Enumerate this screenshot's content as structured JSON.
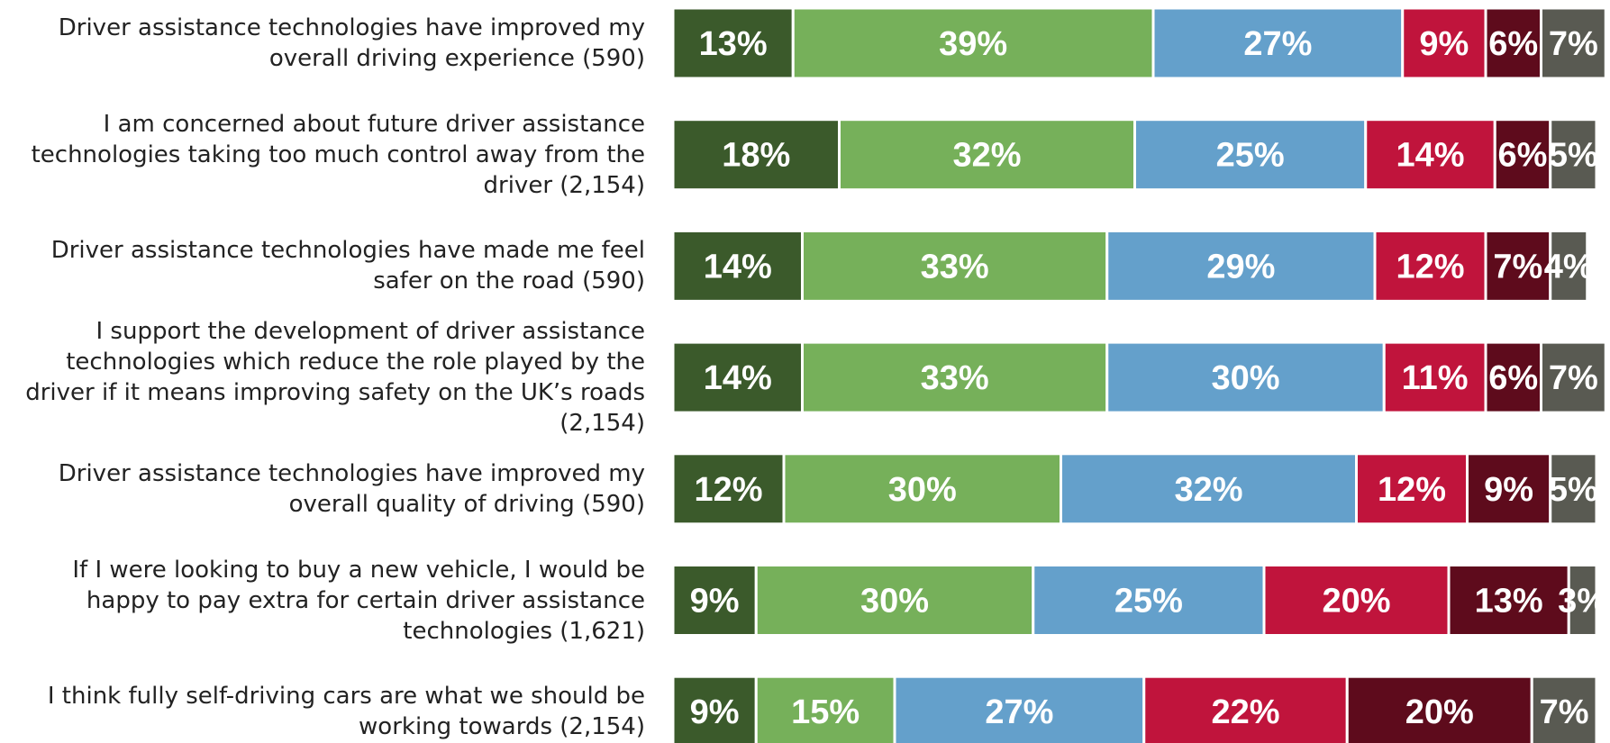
{
  "chart_data": {
    "type": "stacked_bar_horizontal",
    "categories": [
      "Driver assistance technologies have improved my overall driving experience (590)",
      "I am concerned about future driver assistance technologies taking too much control away from the driver (2,154)",
      "Driver assistance technologies have made me feel safer on the road (590)",
      "I support the development of driver assistance technologies which reduce the role played by the driver if it means improving safety on the UK’s roads (2,154)",
      "Driver assistance technologies have improved my overall quality of driving (590)",
      "If I were looking to buy a new vehicle, I would be happy to pay extra for certain driver assistance technologies (1,621)",
      "I think fully self-driving cars are what we should be working towards (2,154)"
    ],
    "series": [
      {
        "color": "#3b5a2b",
        "values": [
          13,
          18,
          14,
          14,
          12,
          9,
          9
        ],
        "value_labels": [
          "13%",
          "18%",
          "14%",
          "14%",
          "12%",
          "9%",
          "9%"
        ]
      },
      {
        "color": "#76b05a",
        "values": [
          39,
          32,
          33,
          33,
          30,
          30,
          15
        ],
        "value_labels": [
          "39%",
          "32%",
          "33%",
          "33%",
          "30%",
          "30%",
          "15%"
        ]
      },
      {
        "color": "#64a0cb",
        "values": [
          27,
          25,
          29,
          30,
          32,
          25,
          27
        ],
        "value_labels": [
          "27%",
          "25%",
          "29%",
          "30%",
          "32%",
          "25%",
          "27%"
        ]
      },
      {
        "color": "#c0143c",
        "values": [
          9,
          14,
          12,
          11,
          12,
          20,
          22
        ],
        "value_labels": [
          "9%",
          "14%",
          "12%",
          "11%",
          "12%",
          "20%",
          "22%"
        ]
      },
      {
        "color": "#5e0b1c",
        "values": [
          6,
          6,
          7,
          6,
          9,
          13,
          20
        ],
        "value_labels": [
          "6%",
          "6%",
          "7%",
          "6%",
          "9%",
          "13%",
          "20%"
        ]
      },
      {
        "color": "#595a52",
        "values": [
          7,
          5,
          4,
          7,
          5,
          3,
          7
        ],
        "value_labels": [
          "7%",
          "5%",
          "4%",
          "7%",
          "5%",
          "3%",
          "7%"
        ]
      }
    ]
  }
}
